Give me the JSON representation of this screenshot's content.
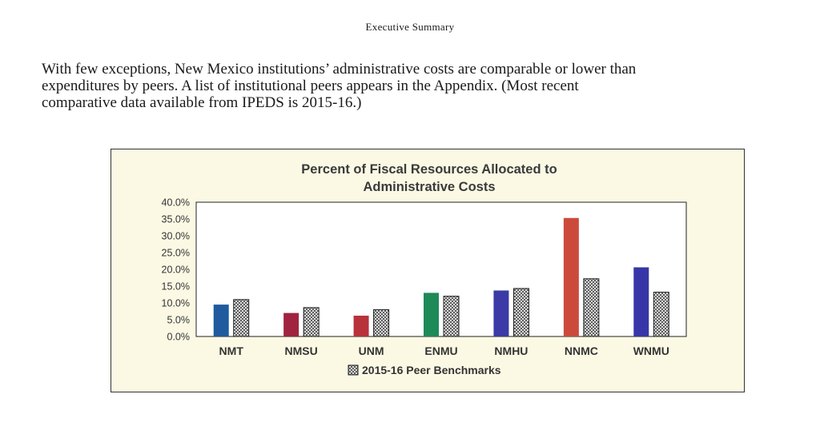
{
  "header": {
    "title": "Executive Summary"
  },
  "paragraph": {
    "lines": [
      "With few exceptions, New Mexico institutions’ administrative costs are comparable or lower than",
      "expenditures by peers. A list of institutional peers appears in the Appendix.  (Most recent",
      "comparative data available from IPEDS is 2015-16.)"
    ]
  },
  "chart_data": {
    "type": "bar",
    "title": [
      "Percent of Fiscal Resources Allocated to",
      "Administrative Costs"
    ],
    "categories": [
      "NMT",
      "NMSU",
      "UNM",
      "ENMU",
      "NMHU",
      "NNMC",
      "WNMU"
    ],
    "series": [
      {
        "values": [
          9.5,
          7.0,
          6.2,
          13.0,
          13.7,
          35.3,
          20.6
        ],
        "colors": [
          "#1f5b9e",
          "#a0233f",
          "#b8323c",
          "#1d8a58",
          "#3b3aa6",
          "#cc4a3b",
          "#3636a8"
        ]
      },
      {
        "name": "2015-16 Peer Benchmarks",
        "values": [
          11.0,
          8.6,
          8.0,
          12.0,
          14.3,
          17.2,
          13.2
        ],
        "pattern": "crosshatch"
      }
    ],
    "ylim": [
      0,
      40
    ],
    "yticks": [
      "40.0%",
      "35.0%",
      "30.0%",
      "25.0%",
      "20.0%",
      "15.0%",
      "10.0%",
      "5.0%",
      "0.0%"
    ],
    "legend": "bottom",
    "grid": false
  }
}
